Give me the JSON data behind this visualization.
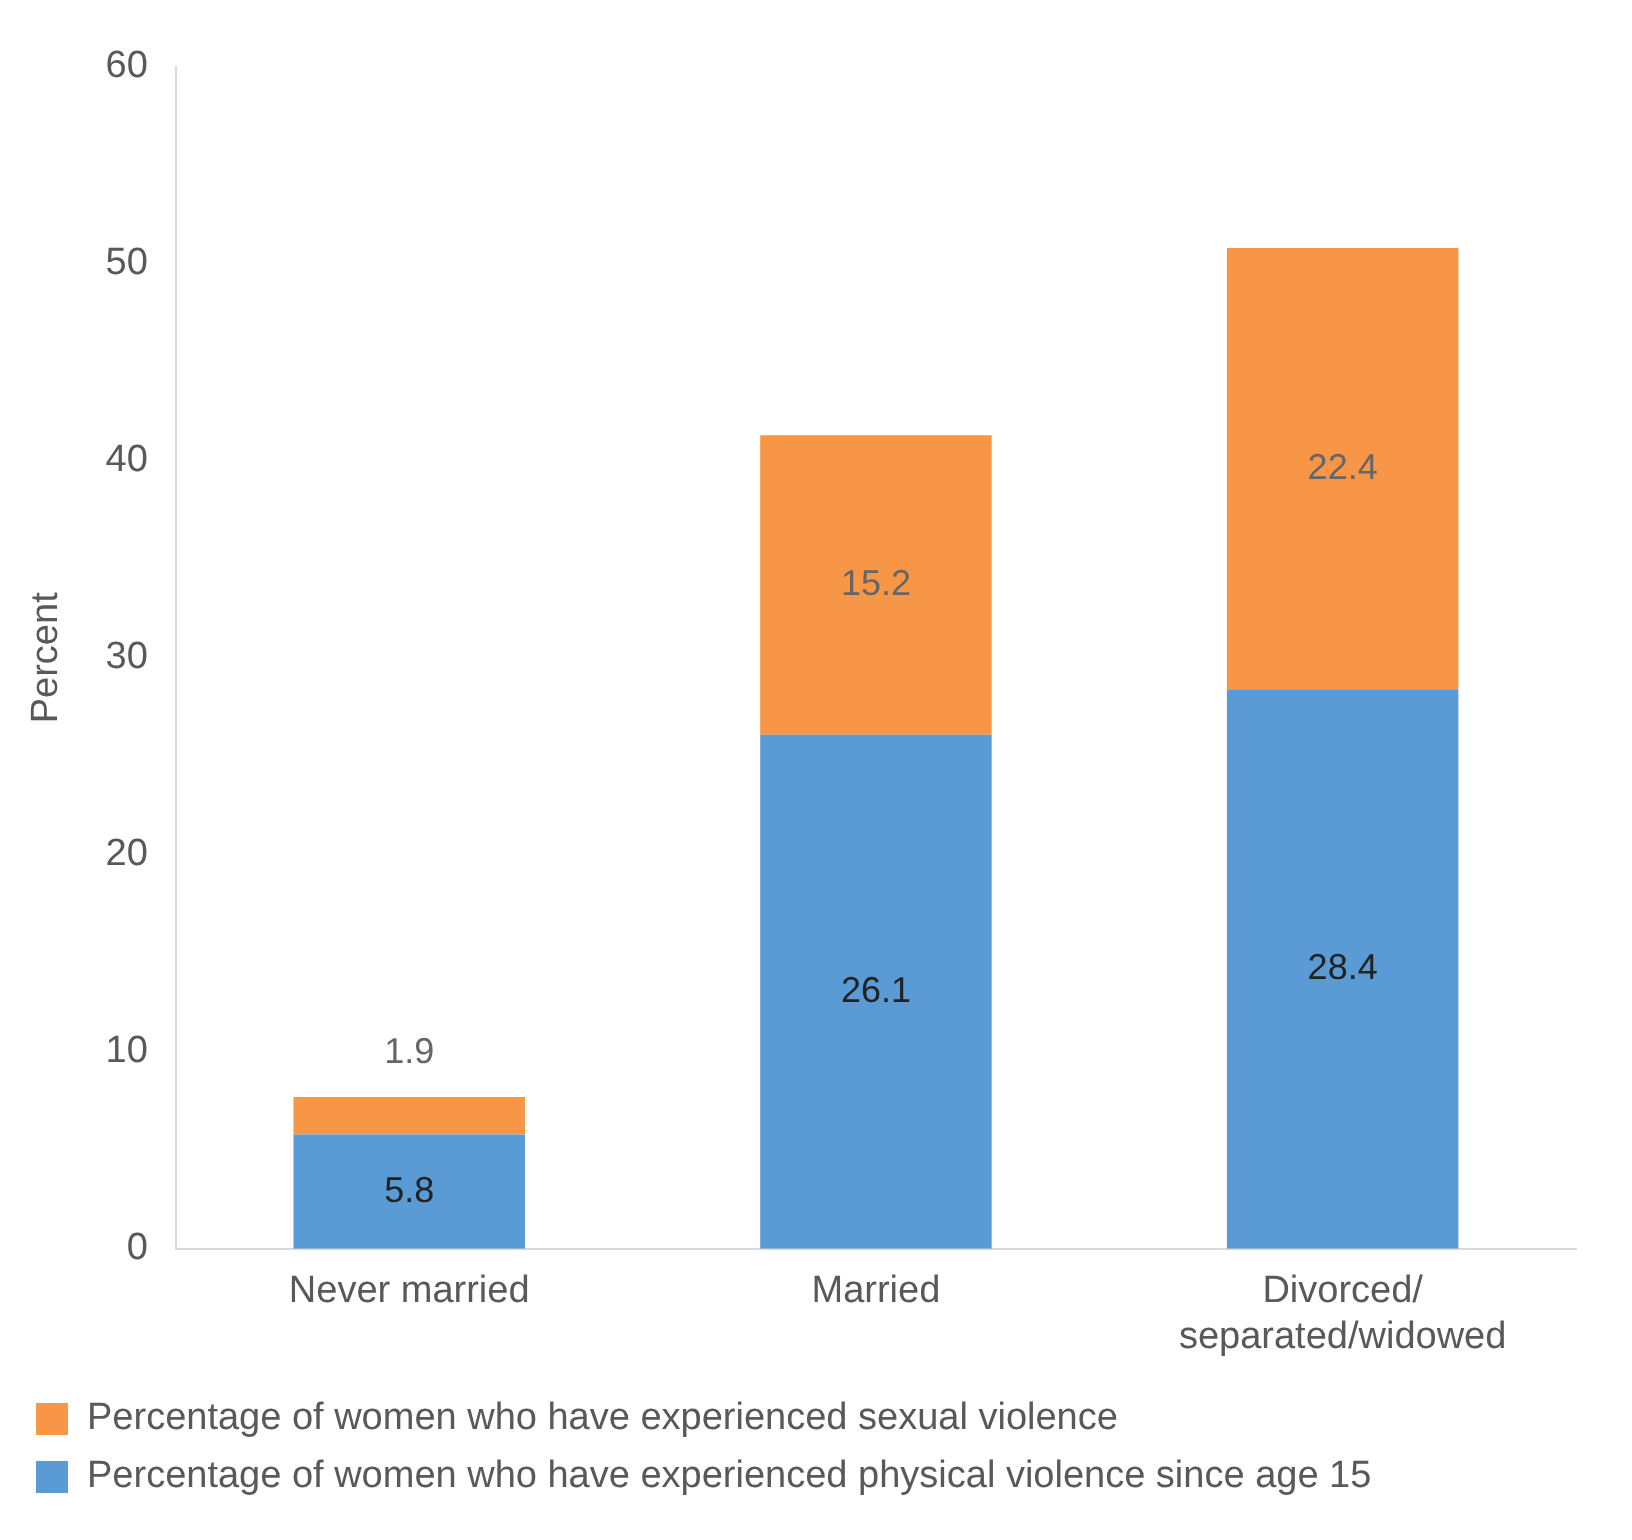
{
  "chart_data": {
    "type": "bar",
    "ylabel": "Percent",
    "categories": [
      "Never married",
      "Married",
      "Divorced/ separated/widowed"
    ],
    "series": [
      {
        "name": "Percentage of women who have experienced physical violence since age 15",
        "color": "#5b9bd5",
        "values": [
          5.8,
          26.1,
          28.4
        ]
      },
      {
        "name": "Percentage of women who have experienced sexual violence",
        "color": "#f79646",
        "values": [
          1.9,
          15.2,
          22.4
        ]
      }
    ],
    "stacked": true,
    "ylim": [
      0,
      60
    ],
    "yticks": [
      0,
      10,
      20,
      30,
      40,
      50,
      60
    ],
    "grid": false,
    "legend": "bottom",
    "data_labels": true
  }
}
